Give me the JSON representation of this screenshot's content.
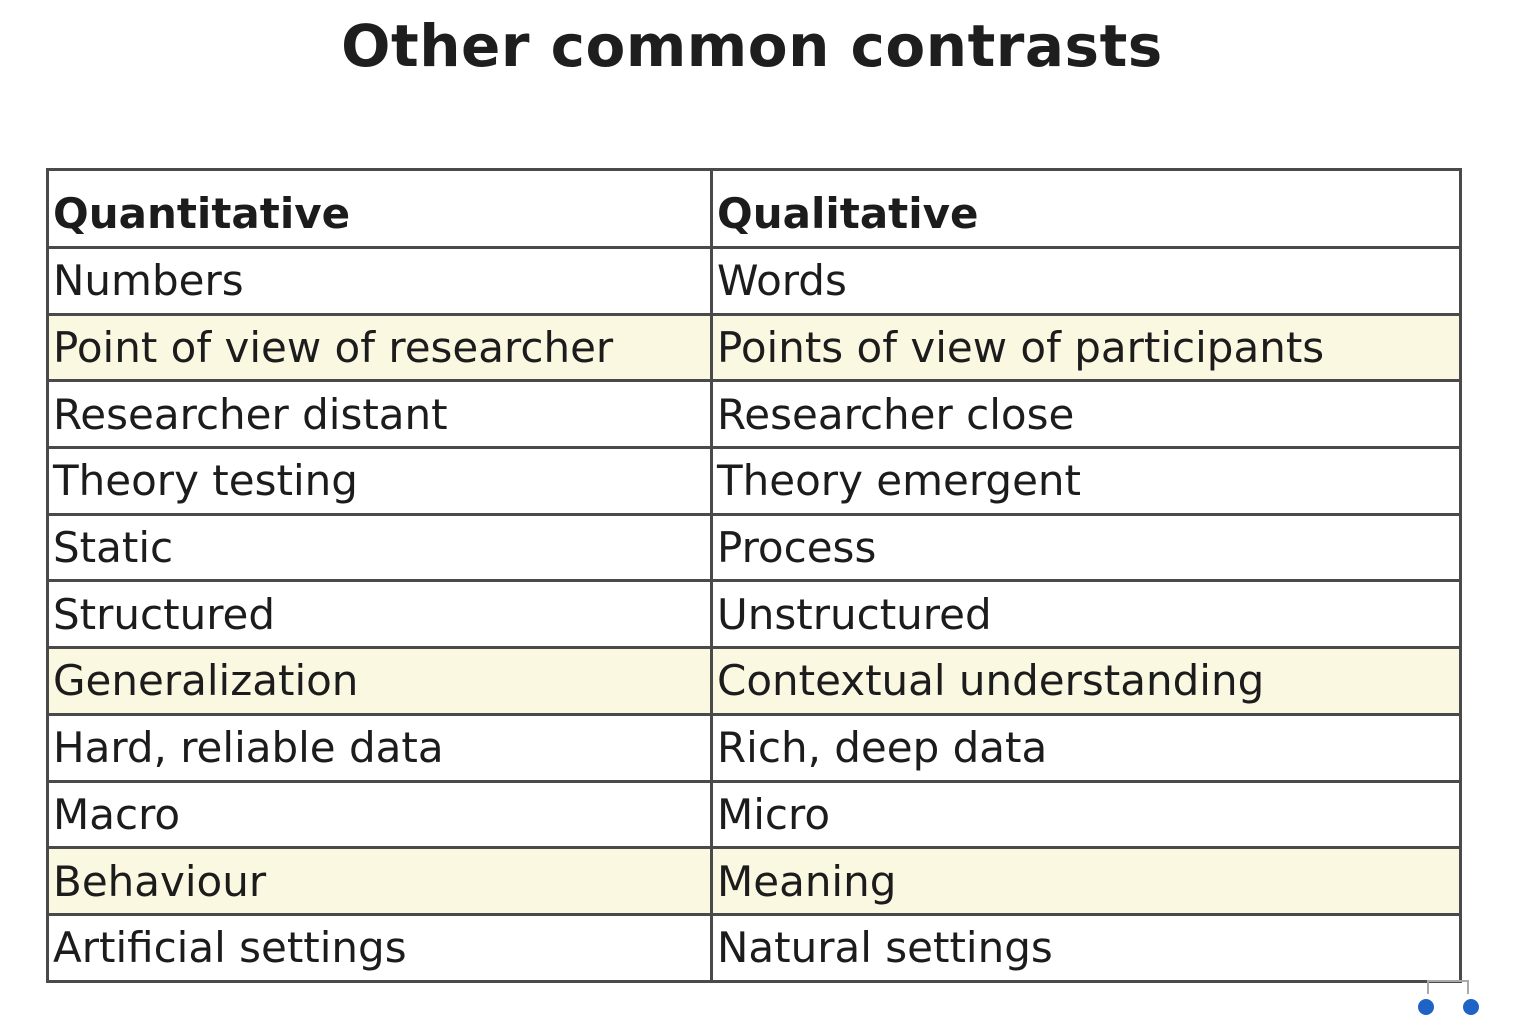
{
  "slide": {
    "title": "Other common contrasts"
  },
  "table": {
    "headers": [
      "Quantitative",
      "Qualitative"
    ],
    "rows": [
      {
        "quantitative": "Numbers",
        "qualitative": "Words",
        "highlighted": false
      },
      {
        "quantitative": "Point of view of researcher",
        "qualitative": "Points of view of participants",
        "highlighted": true
      },
      {
        "quantitative": "Researcher distant",
        "qualitative": "Researcher close",
        "highlighted": false
      },
      {
        "quantitative": "Theory testing",
        "qualitative": "Theory emergent",
        "highlighted": false
      },
      {
        "quantitative": "Static",
        "qualitative": "Process",
        "highlighted": false
      },
      {
        "quantitative": "Structured",
        "qualitative": "Unstructured",
        "highlighted": false
      },
      {
        "quantitative": "Generalization",
        "qualitative": "Contextual understanding",
        "highlighted": true
      },
      {
        "quantitative": "Hard, reliable data",
        "qualitative": "Rich, deep data",
        "highlighted": false
      },
      {
        "quantitative": "Macro",
        "qualitative": "Micro",
        "highlighted": false
      },
      {
        "quantitative": "Behaviour",
        "qualitative": "Meaning",
        "highlighted": true
      },
      {
        "quantitative": "Artificial settings",
        "qualitative": "Natural settings",
        "highlighted": false
      }
    ]
  },
  "colors": {
    "highlight_row": "#fbf8e2",
    "border": "#4a4a4a",
    "nav_dot": "#1f63c6"
  },
  "nav": {
    "prev_icon": "dot-icon",
    "next_icon": "dot-icon"
  }
}
